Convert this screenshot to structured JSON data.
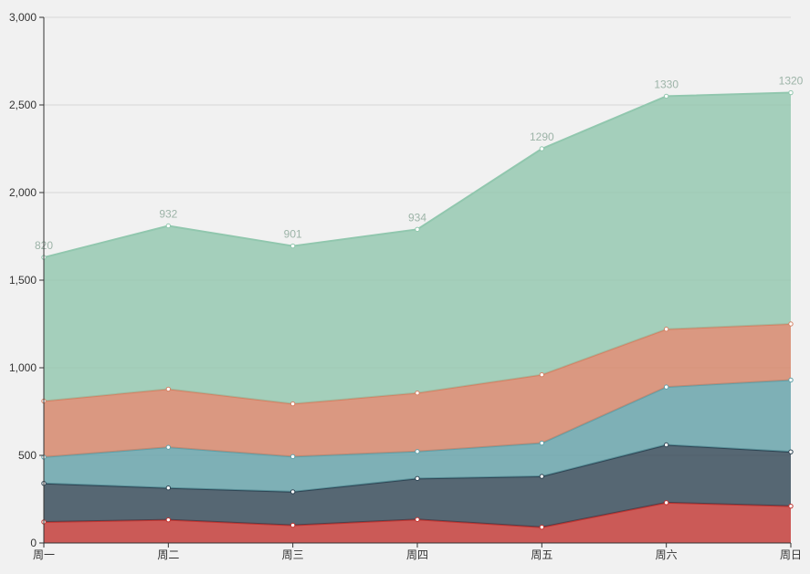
{
  "chart_data": {
    "type": "area",
    "stacked": true,
    "grid": "horizontal-only",
    "legend": "none",
    "categories": [
      "周一",
      "周二",
      "周三",
      "周四",
      "周五",
      "周六",
      "周日"
    ],
    "series": [
      {
        "id": "series-red",
        "color": "#c23531",
        "values": [
          120,
          132,
          101,
          134,
          90,
          230,
          210
        ],
        "labels_shown": false
      },
      {
        "id": "series-navy",
        "color": "#2f4554",
        "values": [
          220,
          182,
          191,
          234,
          290,
          330,
          310
        ],
        "labels_shown": false
      },
      {
        "id": "series-teal",
        "color": "#61a0a8",
        "values": [
          150,
          232,
          201,
          154,
          190,
          330,
          410
        ],
        "labels_shown": false
      },
      {
        "id": "series-salmon",
        "color": "#d48265",
        "values": [
          320,
          332,
          301,
          334,
          390,
          330,
          320
        ],
        "labels_shown": false
      },
      {
        "id": "series-green",
        "color": "#91c7ae",
        "values": [
          820,
          932,
          901,
          934,
          1290,
          1330,
          1320
        ],
        "labels_shown": true
      }
    ],
    "point_labels": [
      "820",
      "932",
      "901",
      "934",
      "1290",
      "1330",
      "1320"
    ],
    "x_axis": {
      "labels": [
        "周一",
        "周二",
        "周三",
        "周四",
        "周五",
        "周六",
        "周日"
      ]
    },
    "y_axis": {
      "min": 0,
      "max": 3000,
      "interval": 500,
      "ticks": [
        {
          "value": 0,
          "label": "0"
        },
        {
          "value": 500,
          "label": "500"
        },
        {
          "value": 1000,
          "label": "1,000"
        },
        {
          "value": 1500,
          "label": "1,500"
        },
        {
          "value": 2000,
          "label": "2,000"
        },
        {
          "value": 2500,
          "label": "2,500"
        },
        {
          "value": 3000,
          "label": "3,000"
        }
      ]
    }
  },
  "style": {
    "background": "#f1f1f1",
    "grid_line_color": "#d7d7d7",
    "axis_color": "#333333",
    "tick_label_color": "#333333",
    "point_label_color": "#9db4a8",
    "area_opacity": 0.8,
    "symbol_fill": "#ffffff"
  }
}
